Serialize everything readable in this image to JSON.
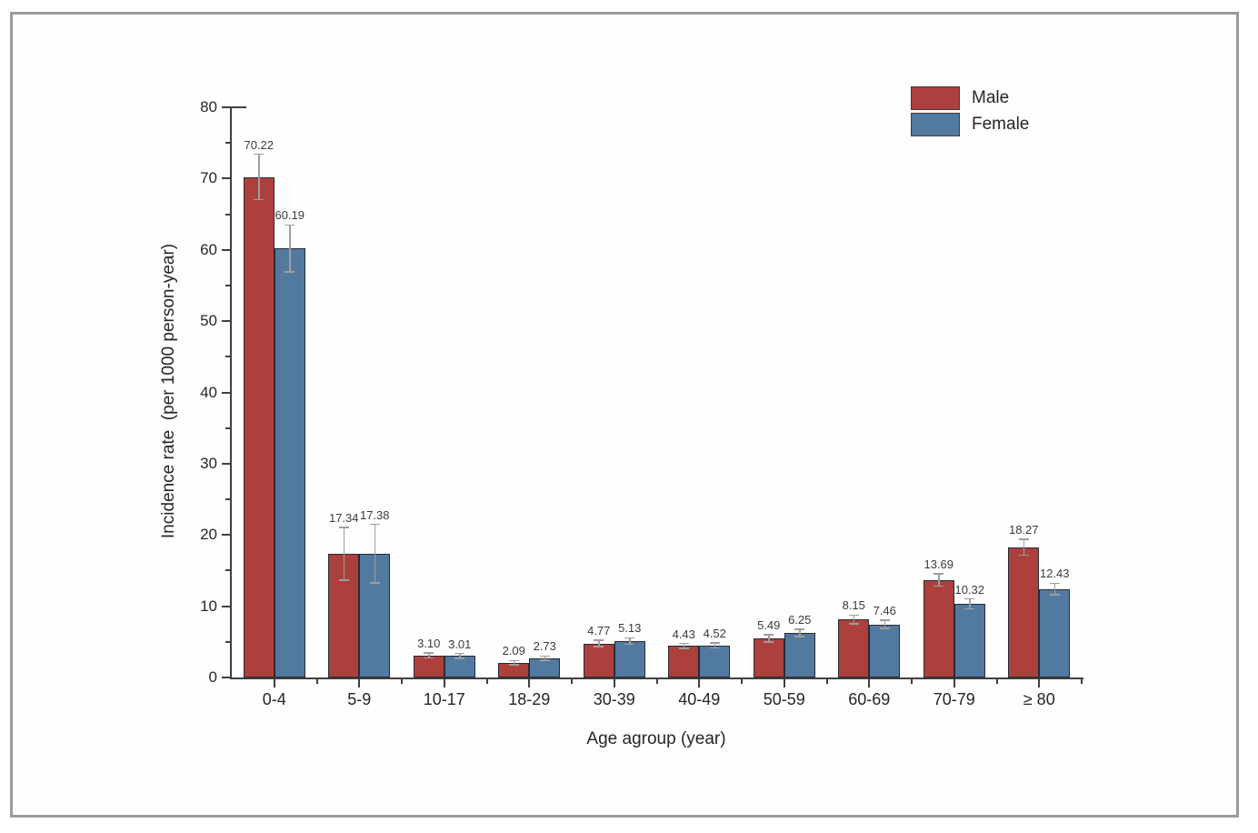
{
  "figure": {
    "border_color": "#9b9b9b",
    "background": "#ffffff"
  },
  "chart_data": {
    "type": "bar",
    "title": "",
    "xlabel": "Age agroup (year)",
    "ylabel": "Incidence rate  (per 1000 person-year)",
    "ylim": [
      0,
      80
    ],
    "yticks": [
      0,
      10,
      20,
      30,
      40,
      50,
      60,
      70,
      80
    ],
    "minor_ytick_step": 5,
    "grid": false,
    "legend_position": "top-right",
    "error_bars": true,
    "error_bar_color": "#9e9e9e",
    "value_label_color": "#3a3a3a",
    "categories": [
      "0-4",
      "5-9",
      "10-17",
      "18-29",
      "30-39",
      "40-49",
      "50-59",
      "60-69",
      "70-79",
      "≥ 80"
    ],
    "series": [
      {
        "name": "Male",
        "color": "#ac403d",
        "border_color": "#2a2a33",
        "values": [
          70.22,
          17.34,
          3.1,
          2.09,
          4.77,
          4.43,
          5.49,
          8.15,
          13.69,
          18.27
        ],
        "labels": [
          "70.22",
          "17.34",
          "3.10",
          "2.09",
          "4.77",
          "4.43",
          "5.49",
          "8.15",
          "13.69",
          "18.27"
        ],
        "errors": [
          3.2,
          3.7,
          0.35,
          0.3,
          0.45,
          0.35,
          0.5,
          0.6,
          0.85,
          1.1
        ]
      },
      {
        "name": "Female",
        "color": "#527aa0",
        "border_color": "#2a2a33",
        "values": [
          60.19,
          17.38,
          3.01,
          2.73,
          5.13,
          4.52,
          6.25,
          7.46,
          10.32,
          12.43
        ],
        "labels": [
          "60.19",
          "17.38",
          "3.01",
          "2.73",
          "5.13",
          "4.52",
          "6.25",
          "7.46",
          "10.32",
          "12.43"
        ],
        "errors": [
          3.3,
          4.1,
          0.35,
          0.3,
          0.45,
          0.35,
          0.5,
          0.55,
          0.7,
          0.8
        ]
      }
    ]
  }
}
